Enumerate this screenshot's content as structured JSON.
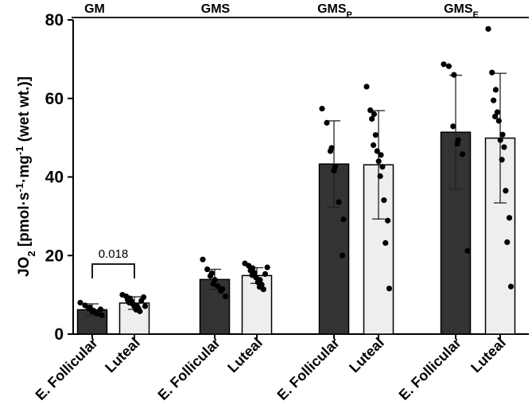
{
  "chart_data": {
    "type": "bar",
    "title": "",
    "ylabel": {
      "parts": [
        {
          "t": "JO",
          "k": "n"
        },
        {
          "t": "2",
          "k": "sub"
        },
        {
          "t": " [pmol·s",
          "k": "n"
        },
        {
          "t": "-1",
          "k": "sup"
        },
        {
          "t": "·mg",
          "k": "n"
        },
        {
          "t": "-1",
          "k": "sup"
        },
        {
          "t": " (wet wt.)]",
          "k": "n"
        }
      ]
    },
    "ylim": [
      0,
      80
    ],
    "yticks": [
      "0",
      "20",
      "40",
      "60",
      "80"
    ],
    "groups": [
      {
        "label": "GM",
        "sub": ""
      },
      {
        "label": "GMS",
        "sub": ""
      },
      {
        "label": "GMS",
        "sub": "P"
      },
      {
        "label": "GMS",
        "sub": "E"
      }
    ],
    "series": [
      {
        "name": "E. Follicular",
        "color": "#333333",
        "means": [
          6.2,
          13.9,
          43.3,
          51.4
        ],
        "sd": [
          1.5,
          2.6,
          11.0,
          14.5
        ],
        "points": [
          [
            8.0,
            7.3,
            6.8,
            6.5,
            6.0,
            5.7,
            5.2,
            4.8,
            6.3
          ],
          [
            19.0,
            16.5,
            15.5,
            14.8,
            13.8,
            12.8,
            12.2,
            11.5,
            11.0,
            9.6
          ],
          [
            57.4,
            53.8,
            47.4,
            46.6,
            42.6,
            41.6,
            33.6,
            29.2,
            20.0
          ],
          [
            68.7,
            68.2,
            66.0,
            52.9,
            49.4,
            48.5,
            45.8,
            21.2
          ]
        ]
      },
      {
        "name": "Luteal",
        "color": "#eeeeee",
        "means": [
          7.9,
          14.9,
          43.1,
          49.9
        ],
        "sd": [
          1.6,
          2.0,
          13.8,
          16.5
        ],
        "points": [
          [
            10.0,
            9.6,
            9.1,
            8.7,
            8.3,
            8.0,
            7.6,
            7.3,
            7.0,
            6.6,
            6.2,
            5.8,
            9.4,
            8.5,
            7.1
          ],
          [
            18.0,
            17.4,
            16.8,
            16.2,
            15.6,
            15.0,
            14.4,
            13.8,
            13.2,
            12.6,
            12.0,
            11.4,
            17.0,
            15.3
          ],
          [
            63.0,
            57.0,
            56.0,
            54.8,
            50.7,
            48.1,
            46.6,
            45.6,
            44.0,
            42.6,
            40.2,
            34.1,
            28.9,
            23.2,
            11.6
          ],
          [
            77.7,
            66.6,
            62.2,
            59.5,
            56.5,
            55.4,
            54.3,
            50.8,
            49.4,
            47.6,
            44.4,
            36.5,
            29.6,
            23.4,
            12.1
          ]
        ]
      }
    ],
    "xtick_labels": [
      "E. Follicular",
      "Luteal"
    ],
    "annotation": {
      "text": "0.018",
      "group": 0
    }
  }
}
